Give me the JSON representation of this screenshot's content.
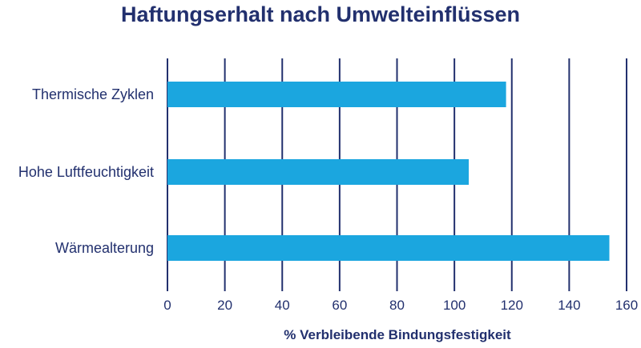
{
  "chart_data": {
    "type": "bar",
    "orientation": "horizontal",
    "title": "Haftungserhalt nach Umwelteinflüssen",
    "xlabel": "% Verbleibende Bindungsfestigkeit",
    "ylabel": "",
    "categories": [
      "Thermische Zyklen",
      "Hohe Luftfeuchtigkeit",
      "Wärmealterung"
    ],
    "values": [
      118,
      105,
      154
    ],
    "xlim": [
      0,
      160
    ],
    "xticks": [
      0,
      20,
      40,
      60,
      80,
      100,
      120,
      140,
      160
    ],
    "grid": true,
    "colors": {
      "bar": "#1ba6df",
      "grid": "#22306e",
      "text": "#22306e"
    }
  }
}
